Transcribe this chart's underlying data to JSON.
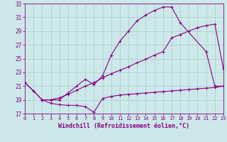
{
  "bg_color": "#cce8e8",
  "line_color": "#880088",
  "grid_color": "#aacccc",
  "xlabel": "Windchill (Refroidissement éolien,°C)",
  "xlim": [
    0,
    23
  ],
  "ylim": [
    17,
    33
  ],
  "yticks": [
    17,
    19,
    21,
    23,
    25,
    27,
    29,
    31,
    33
  ],
  "xticks": [
    0,
    1,
    2,
    3,
    4,
    5,
    6,
    7,
    8,
    9,
    10,
    11,
    12,
    13,
    14,
    15,
    16,
    17,
    18,
    19,
    20,
    21,
    22,
    23
  ],
  "curve1_x": [
    0,
    1,
    2,
    3,
    4,
    5,
    6,
    7,
    8,
    9,
    10,
    11,
    12,
    13,
    14,
    15,
    16,
    17,
    18,
    21,
    22,
    23
  ],
  "curve1_y": [
    21.5,
    20.3,
    19.0,
    19.0,
    19.0,
    20.0,
    21.0,
    22.0,
    21.2,
    22.5,
    25.5,
    27.5,
    29.0,
    30.5,
    31.3,
    32.0,
    32.5,
    32.5,
    30.2,
    26.0,
    21.0,
    21.0
  ],
  "curve2_x": [
    0,
    1,
    2,
    3,
    4,
    5,
    6,
    7,
    8,
    9,
    10,
    11,
    12,
    13,
    14,
    15,
    16,
    17,
    18,
    19,
    20,
    21,
    22,
    23
  ],
  "curve2_y": [
    21.5,
    20.3,
    19.0,
    19.0,
    19.3,
    19.8,
    20.4,
    21.0,
    21.5,
    22.2,
    22.8,
    23.3,
    23.8,
    24.4,
    24.9,
    25.5,
    26.0,
    28.0,
    28.5,
    29.0,
    29.5,
    29.8,
    30.0,
    23.5
  ],
  "curve3_x": [
    2,
    3,
    4,
    5,
    6,
    7,
    8,
    9,
    10,
    11,
    12,
    13,
    14,
    15,
    16,
    17,
    18,
    19,
    20,
    21,
    22,
    23
  ],
  "curve3_y": [
    19.0,
    18.5,
    18.3,
    18.2,
    18.2,
    18.0,
    17.2,
    19.2,
    19.5,
    19.7,
    19.8,
    19.9,
    20.0,
    20.1,
    20.2,
    20.3,
    20.4,
    20.5,
    20.6,
    20.7,
    20.8,
    21.0
  ]
}
